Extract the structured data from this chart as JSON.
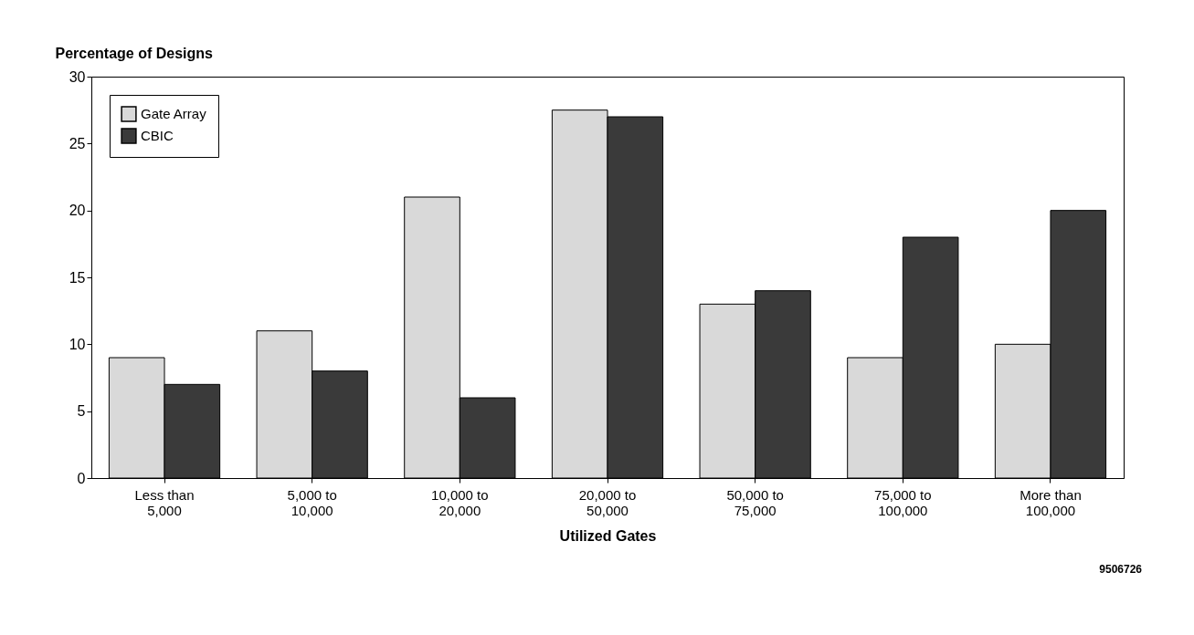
{
  "chart_data": {
    "type": "bar",
    "ylabel": "Percentage of Designs",
    "xlabel": "Utilized Gates",
    "categories": [
      "Less than 5,000",
      "5,000 to 10,000",
      "10,000 to 20,000",
      "20,000 to 50,000",
      "50,000 to 75,000",
      "75,000 to 100,000",
      "More than 100,000"
    ],
    "series": [
      {
        "name": "Gate Array",
        "color": "#d9d9d9",
        "values": [
          9,
          11,
          21,
          27.5,
          13,
          9,
          10
        ]
      },
      {
        "name": "CBIC",
        "color": "#3a3a3a",
        "values": [
          7,
          8,
          6,
          27,
          14,
          18,
          20
        ]
      }
    ],
    "ylim": [
      0,
      30
    ],
    "yticks": [
      0,
      5,
      10,
      15,
      20,
      25,
      30
    ],
    "grid": false,
    "legend": "top left",
    "annotations": [
      "9506726"
    ]
  }
}
